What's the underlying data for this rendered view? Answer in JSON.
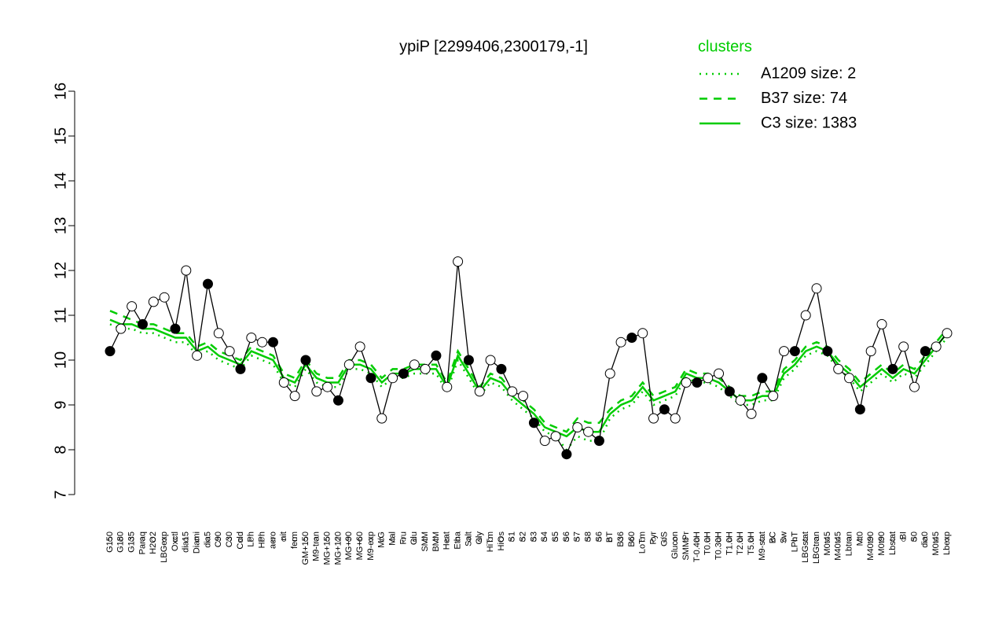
{
  "chart_data": {
    "type": "line",
    "title": "ypiP [2299406,2300179,-1]",
    "legend_title": "clusters",
    "legend_position": "top-right",
    "categories": [
      "G150",
      "G180",
      "G135",
      "Paraq",
      "H2O2",
      "LBGexp",
      "Oxctl",
      "dia15",
      "Diami",
      "dia5",
      "C90",
      "C30",
      "Cold",
      "LPh",
      "HPh",
      "aero",
      "nit",
      "ferm",
      "GM+150",
      "M9-tran",
      "MG+150",
      "MG+120",
      "MG+90",
      "MG+60",
      "M9-exp",
      "M/G",
      "Mal",
      "Fru",
      "Glu",
      "SMM",
      "BMM",
      "Heat",
      "Etha",
      "Salt",
      "Gly",
      "HiTm",
      "HiOs",
      "S1",
      "S2",
      "S3",
      "S4",
      "S5",
      "S6",
      "S7",
      "S8",
      "S6",
      "BT",
      "B36",
      "B60",
      "LoTm",
      "Pyr",
      "G/S",
      "Glucon",
      "SMMPr",
      "T-0.40H",
      "T0.0H",
      "T0.30H",
      "T1.0H",
      "T2.0H",
      "T5.0H",
      "M9-stat",
      "BC",
      "Sw",
      "LPhT",
      "LBGstat",
      "LBGtran",
      "M0t45",
      "M40t45",
      "Lbtran",
      "Mt0",
      "M40t90",
      "M0t90",
      "Lbstat",
      "BI",
      "S0",
      "dia0",
      "M0t45",
      "Lbexp"
    ],
    "values": [
      10.2,
      10.7,
      11.2,
      10.8,
      11.3,
      11.4,
      10.7,
      12.0,
      10.1,
      11.7,
      10.6,
      10.2,
      9.8,
      10.5,
      10.4,
      10.4,
      9.5,
      9.2,
      10.0,
      9.3,
      9.4,
      9.1,
      9.9,
      10.3,
      9.6,
      8.7,
      9.6,
      9.7,
      9.9,
      9.8,
      10.1,
      9.4,
      12.2,
      10.0,
      9.3,
      10.0,
      9.8,
      9.3,
      9.2,
      8.6,
      8.2,
      8.3,
      7.9,
      8.5,
      8.4,
      8.2,
      9.7,
      10.4,
      10.5,
      10.6,
      8.7,
      8.9,
      8.7,
      9.5,
      9.5,
      9.6,
      9.7,
      9.3,
      9.1,
      8.8,
      9.6,
      9.2,
      10.2,
      10.2,
      11.0,
      11.6,
      10.2,
      9.8,
      9.6,
      8.9,
      10.2,
      10.8,
      9.8,
      10.3,
      9.4,
      10.2,
      10.3,
      10.6
    ],
    "color": "#000000",
    "series": [
      {
        "name": "A1209 size: 2",
        "color": "#00cc00",
        "dash": "dotted",
        "values": [
          10.8,
          10.7,
          10.7,
          10.6,
          10.6,
          10.5,
          10.4,
          10.4,
          10.1,
          10.2,
          10.0,
          9.9,
          9.8,
          10.1,
          10.0,
          9.9,
          9.5,
          9.4,
          9.8,
          9.5,
          9.4,
          9.4,
          9.8,
          9.8,
          9.7,
          9.4,
          9.6,
          9.6,
          9.7,
          9.7,
          9.7,
          9.3,
          10.0,
          9.6,
          9.2,
          9.5,
          9.4,
          9.1,
          8.9,
          8.7,
          8.4,
          8.3,
          8.0,
          8.3,
          8.2,
          8.2,
          8.7,
          8.9,
          9.0,
          9.3,
          9.0,
          9.1,
          9.2,
          9.6,
          9.5,
          9.5,
          9.4,
          9.2,
          9.0,
          9.0,
          9.1,
          9.1,
          9.6,
          9.8,
          10.1,
          10.2,
          10.1,
          9.8,
          9.6,
          9.3,
          9.5,
          9.7,
          9.5,
          9.7,
          9.6,
          9.9,
          10.2,
          10.5
        ]
      },
      {
        "name": "B37 size: 74",
        "color": "#00cc00",
        "dash": "dashed",
        "values": [
          11.1,
          11.0,
          10.9,
          10.8,
          10.8,
          10.7,
          10.6,
          10.6,
          10.3,
          10.4,
          10.2,
          10.1,
          10.0,
          10.3,
          10.2,
          10.1,
          9.7,
          9.6,
          10.0,
          9.7,
          9.6,
          9.6,
          10.0,
          10.0,
          9.9,
          9.6,
          9.8,
          9.8,
          9.9,
          9.9,
          9.9,
          9.5,
          10.2,
          9.8,
          9.4,
          9.7,
          9.6,
          9.3,
          9.1,
          8.9,
          8.6,
          8.5,
          8.4,
          8.7,
          8.6,
          8.6,
          8.9,
          9.1,
          9.2,
          9.5,
          9.2,
          9.3,
          9.4,
          9.8,
          9.7,
          9.7,
          9.6,
          9.4,
          9.2,
          9.2,
          9.3,
          9.3,
          9.8,
          10.0,
          10.3,
          10.4,
          10.3,
          10.0,
          9.8,
          9.5,
          9.7,
          9.9,
          9.7,
          9.9,
          9.8,
          10.1,
          10.4,
          10.7
        ]
      },
      {
        "name": "C3 size: 1383",
        "color": "#00cc00",
        "dash": "solid",
        "values": [
          10.9,
          10.8,
          10.8,
          10.7,
          10.7,
          10.6,
          10.5,
          10.5,
          10.2,
          10.3,
          10.1,
          10.0,
          9.9,
          10.2,
          10.1,
          10.0,
          9.6,
          9.5,
          9.9,
          9.6,
          9.5,
          9.5,
          9.9,
          9.9,
          9.8,
          9.5,
          9.7,
          9.7,
          9.8,
          9.8,
          9.8,
          9.4,
          10.1,
          9.7,
          9.3,
          9.6,
          9.5,
          9.2,
          9.0,
          8.8,
          8.5,
          8.4,
          8.3,
          8.5,
          8.4,
          8.4,
          8.8,
          9.0,
          9.1,
          9.4,
          9.1,
          9.2,
          9.3,
          9.7,
          9.6,
          9.6,
          9.5,
          9.3,
          9.1,
          9.1,
          9.2,
          9.2,
          9.7,
          9.9,
          10.2,
          10.3,
          10.2,
          9.9,
          9.7,
          9.4,
          9.6,
          9.8,
          9.6,
          9.8,
          9.7,
          10.0,
          10.3,
          10.6
        ]
      }
    ],
    "ylim": [
      7,
      16
    ],
    "yticks": [
      7,
      8,
      9,
      10,
      11,
      12,
      13,
      14,
      15,
      16
    ],
    "grid": false
  }
}
